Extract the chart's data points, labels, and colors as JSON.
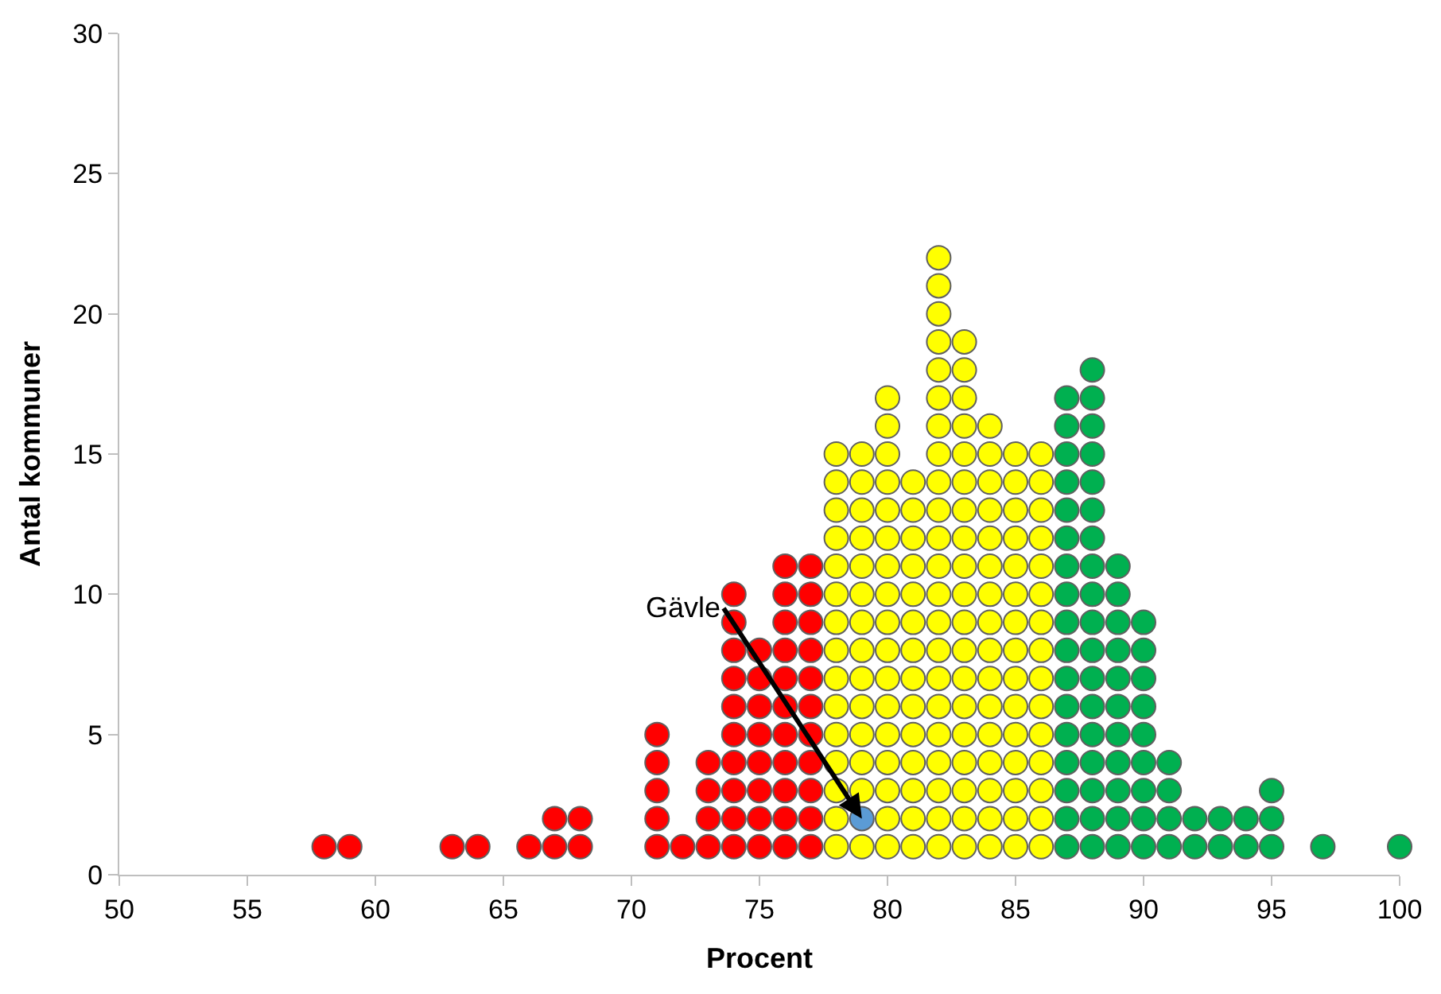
{
  "chart_data": {
    "type": "scatter",
    "xlabel": "Procent",
    "ylabel": "Antal kommuner",
    "xlim": [
      50,
      100
    ],
    "xticks": [
      50,
      55,
      60,
      65,
      70,
      75,
      80,
      85,
      90,
      95,
      100
    ],
    "ylim": [
      0,
      30
    ],
    "yticks": [
      0,
      5,
      10,
      15,
      20,
      25,
      30
    ],
    "marker": "circle",
    "series": [
      {
        "color": "#ff0000",
        "x": [
          58,
          59,
          63,
          64,
          66,
          67,
          67,
          68,
          68,
          71,
          71,
          71,
          71,
          71,
          72,
          73,
          73,
          73,
          73,
          74,
          74,
          74,
          74,
          74,
          74,
          74,
          74,
          74,
          74,
          75,
          75,
          75,
          75,
          75,
          75,
          75,
          75,
          76,
          76,
          76,
          76,
          76,
          76,
          76,
          76,
          76,
          76,
          76,
          77,
          77,
          77,
          77,
          77,
          77,
          77,
          77,
          77,
          77,
          77
        ],
        "values": [
          1,
          1,
          1,
          1,
          1,
          1,
          2,
          1,
          2,
          1,
          2,
          3,
          4,
          5,
          1,
          1,
          2,
          3,
          4,
          1,
          2,
          3,
          4,
          5,
          6,
          7,
          8,
          9,
          10,
          1,
          2,
          3,
          4,
          5,
          6,
          7,
          8,
          1,
          2,
          3,
          4,
          5,
          6,
          7,
          8,
          9,
          10,
          11,
          1,
          2,
          3,
          4,
          5,
          6,
          7,
          8,
          9,
          10,
          11
        ]
      },
      {
        "color": "#ffff00",
        "x": [
          78,
          78,
          78,
          78,
          78,
          78,
          78,
          78,
          78,
          78,
          78,
          78,
          78,
          78,
          78,
          79,
          79,
          79,
          79,
          79,
          79,
          79,
          79,
          79,
          79,
          79,
          79,
          79,
          79,
          80,
          80,
          80,
          80,
          80,
          80,
          80,
          80,
          80,
          80,
          80,
          80,
          80,
          80,
          80,
          80,
          80,
          81,
          81,
          81,
          81,
          81,
          81,
          81,
          81,
          81,
          81,
          81,
          81,
          81,
          81,
          82,
          82,
          82,
          82,
          82,
          82,
          82,
          82,
          82,
          82,
          82,
          82,
          82,
          82,
          82,
          82,
          82,
          82,
          82,
          82,
          82,
          82,
          83,
          83,
          83,
          83,
          83,
          83,
          83,
          83,
          83,
          83,
          83,
          83,
          83,
          83,
          83,
          83,
          83,
          83,
          83,
          84,
          84,
          84,
          84,
          84,
          84,
          84,
          84,
          84,
          84,
          84,
          84,
          84,
          84,
          84,
          84,
          85,
          85,
          85,
          85,
          85,
          85,
          85,
          85,
          85,
          85,
          85,
          85,
          85,
          85,
          85,
          86,
          86,
          86,
          86,
          86,
          86,
          86,
          86,
          86,
          86,
          86,
          86,
          86,
          86,
          86
        ],
        "values": [
          1,
          2,
          3,
          4,
          5,
          6,
          7,
          8,
          9,
          10,
          11,
          12,
          13,
          14,
          15,
          1,
          3,
          4,
          5,
          6,
          7,
          8,
          9,
          10,
          11,
          12,
          13,
          14,
          15,
          1,
          2,
          3,
          4,
          5,
          6,
          7,
          8,
          9,
          10,
          11,
          12,
          13,
          14,
          15,
          16,
          17,
          1,
          2,
          3,
          4,
          5,
          6,
          7,
          8,
          9,
          10,
          11,
          12,
          13,
          14,
          1,
          2,
          3,
          4,
          5,
          6,
          7,
          8,
          9,
          10,
          11,
          12,
          13,
          14,
          15,
          16,
          17,
          18,
          19,
          20,
          21,
          22,
          1,
          2,
          3,
          4,
          5,
          6,
          7,
          8,
          9,
          10,
          11,
          12,
          13,
          14,
          15,
          16,
          17,
          18,
          19,
          1,
          2,
          3,
          4,
          5,
          6,
          7,
          8,
          9,
          10,
          11,
          12,
          13,
          14,
          15,
          16,
          1,
          2,
          3,
          4,
          5,
          6,
          7,
          8,
          9,
          10,
          11,
          12,
          13,
          14,
          15,
          1,
          2,
          3,
          4,
          5,
          6,
          7,
          8,
          9,
          10,
          11,
          12,
          13,
          14,
          15
        ]
      },
      {
        "color": "#5b9bd5",
        "x": [
          79
        ],
        "values": [
          2
        ]
      },
      {
        "color": "#00b050",
        "x": [
          87,
          87,
          87,
          87,
          87,
          87,
          87,
          87,
          87,
          87,
          87,
          87,
          87,
          87,
          87,
          87,
          87,
          88,
          88,
          88,
          88,
          88,
          88,
          88,
          88,
          88,
          88,
          88,
          88,
          88,
          88,
          88,
          88,
          88,
          88,
          89,
          89,
          89,
          89,
          89,
          89,
          89,
          89,
          89,
          89,
          89,
          90,
          90,
          90,
          90,
          90,
          90,
          90,
          90,
          90,
          91,
          91,
          91,
          91,
          92,
          92,
          93,
          93,
          94,
          94,
          95,
          95,
          95,
          97,
          100
        ],
        "values": [
          1,
          2,
          3,
          4,
          5,
          6,
          7,
          8,
          9,
          10,
          11,
          12,
          13,
          14,
          15,
          16,
          17,
          1,
          2,
          3,
          4,
          5,
          6,
          7,
          8,
          9,
          10,
          11,
          12,
          13,
          14,
          15,
          16,
          17,
          18,
          1,
          2,
          3,
          4,
          5,
          6,
          7,
          8,
          9,
          10,
          11,
          1,
          2,
          3,
          4,
          5,
          6,
          7,
          8,
          9,
          1,
          2,
          3,
          4,
          1,
          2,
          1,
          2,
          1,
          2,
          1,
          2,
          3,
          1,
          1
        ]
      }
    ],
    "annotations": [
      {
        "text": "Gävle",
        "x": 79,
        "y": 2
      }
    ]
  }
}
